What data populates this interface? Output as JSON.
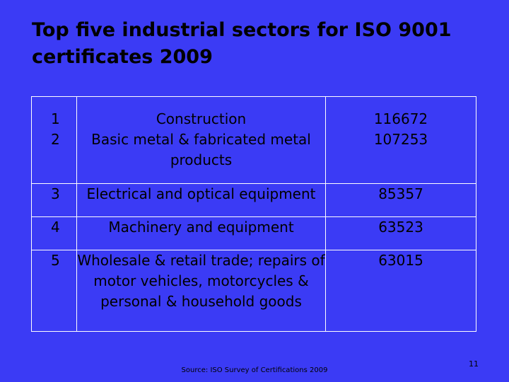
{
  "slide": {
    "title": "Top five industrial sectors for ISO 9001 certificates 2009",
    "source": "Source: ISO Survey of Certifications 2009",
    "page_number": "11"
  },
  "table": {
    "rows": [
      {
        "rank": "1",
        "sector": "Construction",
        "count": "116672"
      },
      {
        "rank": "2",
        "sector": "Basic metal & fabricated metal products",
        "count": "107253"
      },
      {
        "rank": "3",
        "sector": "Electrical and optical equipment",
        "count": "85357"
      },
      {
        "rank": "4",
        "sector": "Machinery and equipment",
        "count": "63523"
      },
      {
        "rank": "5",
        "sector": "Wholesale & retail trade; repairs of motor vehicles, motorcycles & personal & household goods",
        "count": "63015"
      }
    ]
  },
  "colors": {
    "background": "#3b3bf5",
    "text": "#000000",
    "table_lines": "#ffffff"
  }
}
